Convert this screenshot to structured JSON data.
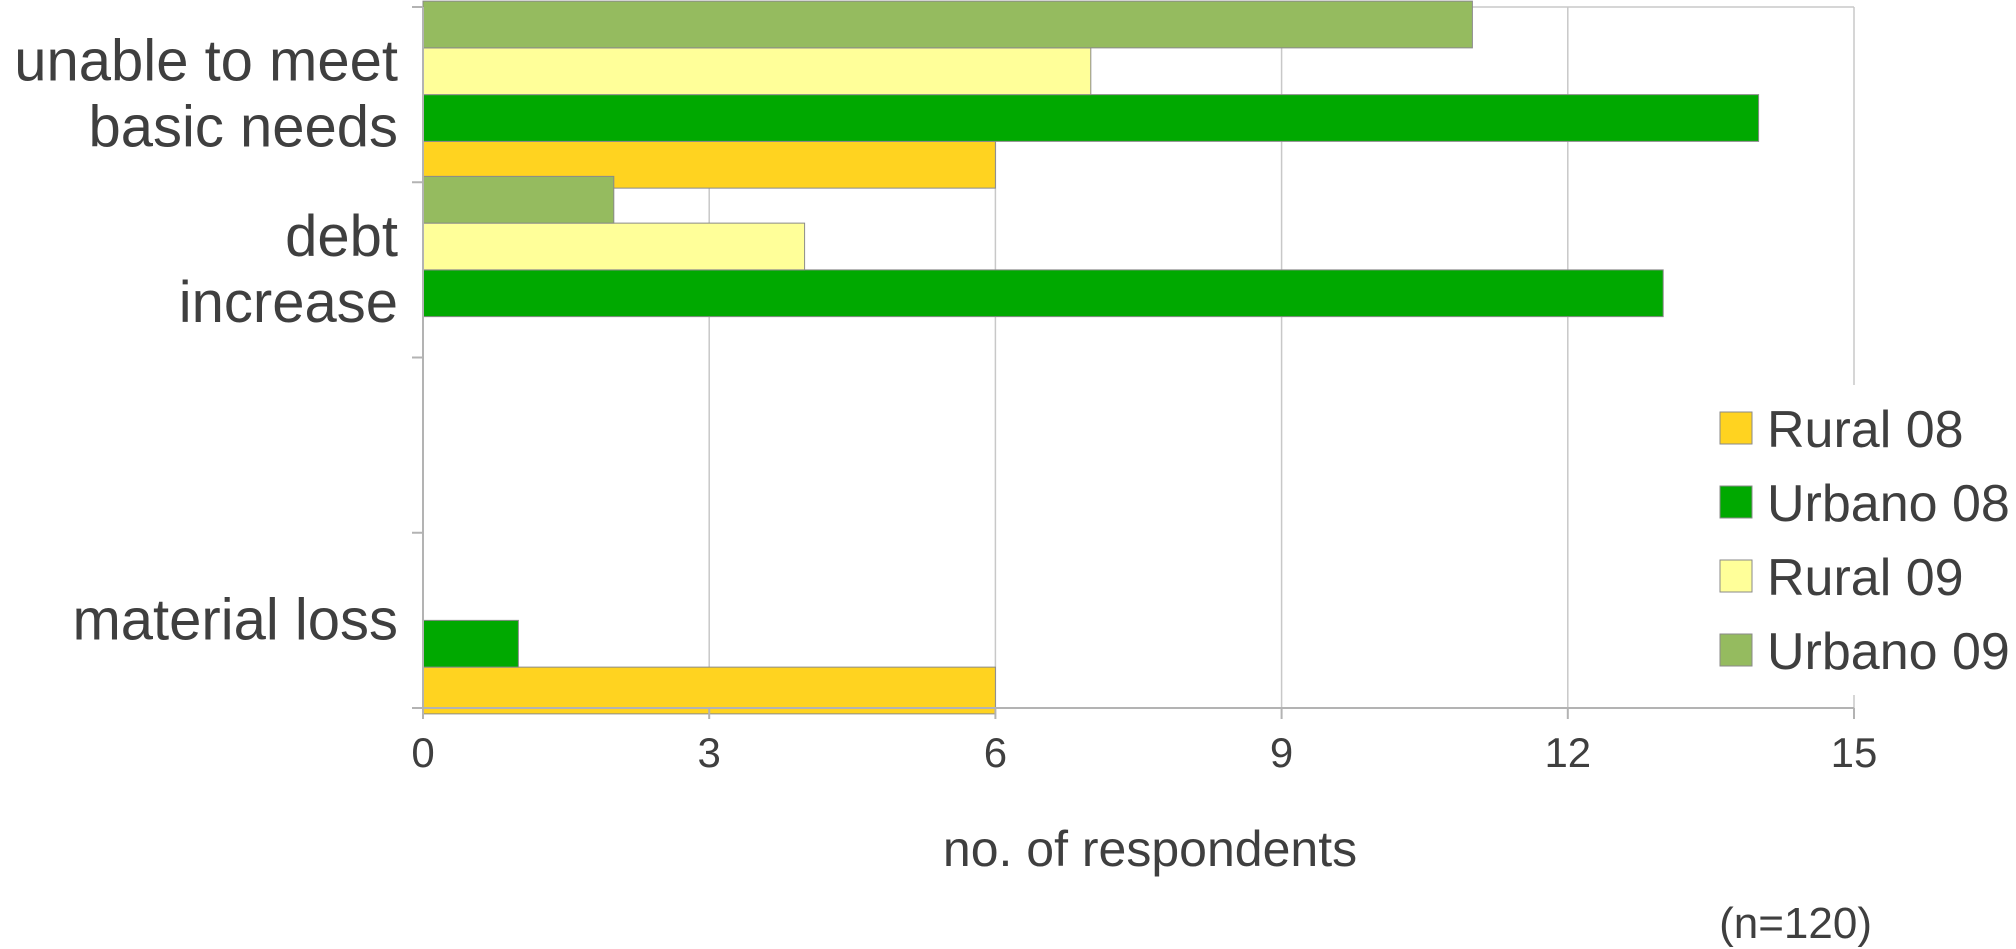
{
  "chart_data": {
    "type": "bar",
    "orientation": "horizontal",
    "categories": [
      [
        "unable to meet",
        "basic needs"
      ],
      [
        "debt",
        "increase"
      ],
      [
        "",
        ""
      ],
      [
        "material loss"
      ]
    ],
    "series": [
      {
        "name": "Rural 08",
        "color": "#ffd320",
        "values": [
          6,
          0,
          0,
          6
        ]
      },
      {
        "name": "Urbano 08",
        "color": "#00a900",
        "values": [
          14,
          13,
          0,
          1
        ]
      },
      {
        "name": "Rural 09",
        "color": "#ffff99",
        "values": [
          7,
          4,
          0,
          0
        ]
      },
      {
        "name": "Urbano 09",
        "color": "#95bb5f",
        "values": [
          11,
          2,
          0,
          0
        ]
      }
    ],
    "xlabel": "no. of respondents",
    "ylabel": "",
    "xlim": [
      0,
      15
    ],
    "xticks": [
      0,
      3,
      6,
      9,
      12,
      15
    ],
    "grid": true,
    "legend_position": "right",
    "note": "(n=120)"
  }
}
